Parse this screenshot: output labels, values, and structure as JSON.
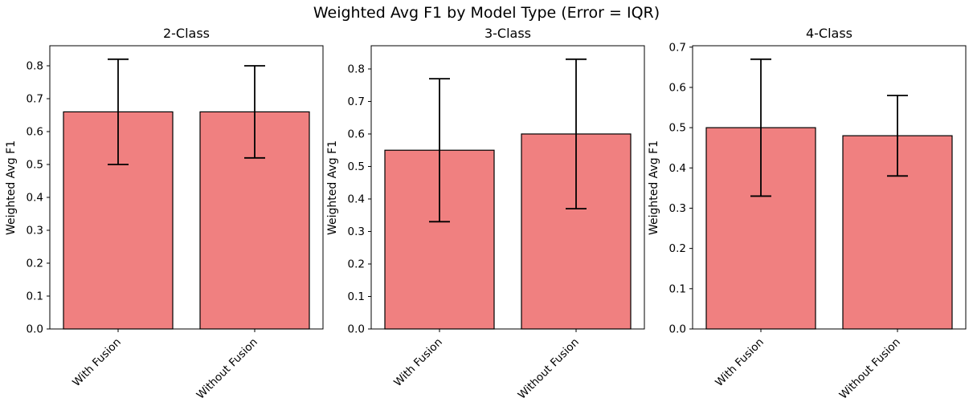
{
  "figure": {
    "title": "Weighted Avg F1 by Model Type (Error = IQR)",
    "background_color": "#ffffff",
    "text_color": "#000000"
  },
  "chart_data": {
    "type": "bar",
    "title": "Weighted Avg F1 by Model Type (Error = IQR)",
    "ylabel": "Weighted Avg F1",
    "error_bars": "IQR",
    "categories": [
      "With Fusion",
      "Without Fusion"
    ],
    "bar_color": "#f08080",
    "bar_edge_color": "#000000",
    "error_color": "#000000",
    "axis_color": "#000000",
    "grid": false,
    "legend": "none",
    "subplots": [
      {
        "title": "2-Class",
        "ylim": [
          0,
          0.861
        ],
        "yticks": [
          0.0,
          0.1,
          0.2,
          0.3,
          0.4,
          0.5,
          0.6,
          0.7,
          0.8
        ],
        "series": [
          {
            "category": "With Fusion",
            "value": 0.66,
            "err_low": 0.5,
            "err_high": 0.82
          },
          {
            "category": "Without Fusion",
            "value": 0.66,
            "err_low": 0.52,
            "err_high": 0.8
          }
        ]
      },
      {
        "title": "3-Class",
        "ylim": [
          0,
          0.8715
        ],
        "yticks": [
          0.0,
          0.1,
          0.2,
          0.3,
          0.4,
          0.5,
          0.6,
          0.7,
          0.8
        ],
        "series": [
          {
            "category": "With Fusion",
            "value": 0.55,
            "err_low": 0.33,
            "err_high": 0.77
          },
          {
            "category": "Without Fusion",
            "value": 0.6,
            "err_low": 0.37,
            "err_high": 0.83
          }
        ]
      },
      {
        "title": "4-Class",
        "ylim": [
          0,
          0.7035
        ],
        "yticks": [
          0.0,
          0.1,
          0.2,
          0.3,
          0.4,
          0.5,
          0.6,
          0.7
        ],
        "series": [
          {
            "category": "With Fusion",
            "value": 0.5,
            "err_low": 0.33,
            "err_high": 0.67
          },
          {
            "category": "Without Fusion",
            "value": 0.48,
            "err_low": 0.38,
            "err_high": 0.58
          }
        ]
      }
    ]
  }
}
